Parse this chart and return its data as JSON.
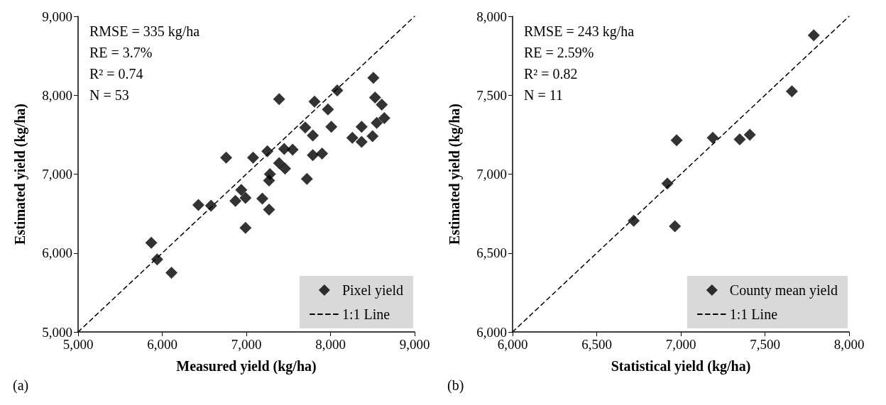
{
  "chart_data": [
    {
      "type": "scatter",
      "xlabel": "Measured yield (kg/ha)",
      "ylabel": "Estimated yield (kg/ha)",
      "xlim": [
        5000,
        9000
      ],
      "ylim": [
        5000,
        9000
      ],
      "xticks": [
        {
          "value": 5000,
          "label": "5,000"
        },
        {
          "value": 6000,
          "label": "6,000"
        },
        {
          "value": 7000,
          "label": "7,000"
        },
        {
          "value": 8000,
          "label": "8,000"
        },
        {
          "value": 9000,
          "label": "9,000"
        }
      ],
      "yticks": [
        {
          "value": 5000,
          "label": "5,000"
        },
        {
          "value": 6000,
          "label": "6,000"
        },
        {
          "value": 7000,
          "label": "7,000"
        },
        {
          "value": 8000,
          "label": "8,000"
        },
        {
          "value": 9000,
          "label": "9,000"
        }
      ],
      "marker": "diamond",
      "legend": "bottom right",
      "annotations": [
        "RMSE = 335 kg/ha",
        "RE = 3.7%",
        "R² = 0.74",
        "N = 53",
        "(a)"
      ],
      "series": [
        {
          "name": "Pixel yield",
          "type": "scatter",
          "color": "#000000",
          "x": [
            8510,
            8080,
            7390,
            7810,
            7970,
            8530,
            8610,
            8640,
            7700,
            8010,
            7790,
            8370,
            8550,
            8260,
            8370,
            8500,
            6760,
            7080,
            7250,
            7450,
            7550,
            7790,
            7900,
            7390,
            7460,
            7280,
            7270,
            7720,
            6940,
            6870,
            6990,
            7190,
            7270,
            6430,
            6580,
            6990,
            5870,
            5940,
            6110
          ],
          "values": [
            8220,
            8060,
            7950,
            7920,
            7820,
            7970,
            7880,
            7710,
            7590,
            7600,
            7490,
            7600,
            7650,
            7460,
            7410,
            7480,
            7210,
            7210,
            7290,
            7320,
            7310,
            7240,
            7260,
            7140,
            7070,
            7000,
            6920,
            6940,
            6800,
            6660,
            6700,
            6690,
            6550,
            6610,
            6600,
            6320,
            6130,
            5920,
            5750
          ]
        },
        {
          "name": "1:1 Line",
          "type": "line",
          "color": "#000000",
          "line_style": "dashed",
          "marker": "none",
          "x": [
            5000,
            9000
          ],
          "values": [
            5000,
            9000
          ]
        }
      ]
    },
    {
      "type": "scatter",
      "xlabel": "Statistical yield (kg/ha)",
      "ylabel": "Estimated yield (kg/ha)",
      "xlim": [
        6000,
        8000
      ],
      "ylim": [
        6000,
        8000
      ],
      "xticks": [
        {
          "value": 6000,
          "label": "6,000"
        },
        {
          "value": 6500,
          "label": "6,500"
        },
        {
          "value": 7000,
          "label": "7,000"
        },
        {
          "value": 7500,
          "label": "7,500"
        },
        {
          "value": 8000,
          "label": "8,000"
        }
      ],
      "yticks": [
        {
          "value": 6000,
          "label": "6,000"
        },
        {
          "value": 6500,
          "label": "6,500"
        },
        {
          "value": 7000,
          "label": "7,000"
        },
        {
          "value": 7500,
          "label": "7,500"
        },
        {
          "value": 8000,
          "label": "8,000"
        }
      ],
      "marker": "diamond",
      "legend": "bottom right",
      "annotations": [
        "RMSE = 243 kg/ha",
        "RE = 2.59%",
        "R² = 0.82",
        "N = 11",
        "(b)"
      ],
      "series": [
        {
          "name": "County mean yield",
          "type": "scatter",
          "color": "#000000",
          "x": [
            7790,
            7660,
            6975,
            7190,
            7350,
            7410,
            6920,
            6720,
            6965
          ],
          "values": [
            7880,
            7525,
            7215,
            7230,
            7220,
            7250,
            6940,
            6705,
            6670
          ]
        },
        {
          "name": "1:1 Line",
          "type": "line",
          "color": "#000000",
          "line_style": "dashed",
          "marker": "none",
          "x": [
            6000,
            8000
          ],
          "values": [
            6000,
            8000
          ]
        }
      ]
    }
  ]
}
